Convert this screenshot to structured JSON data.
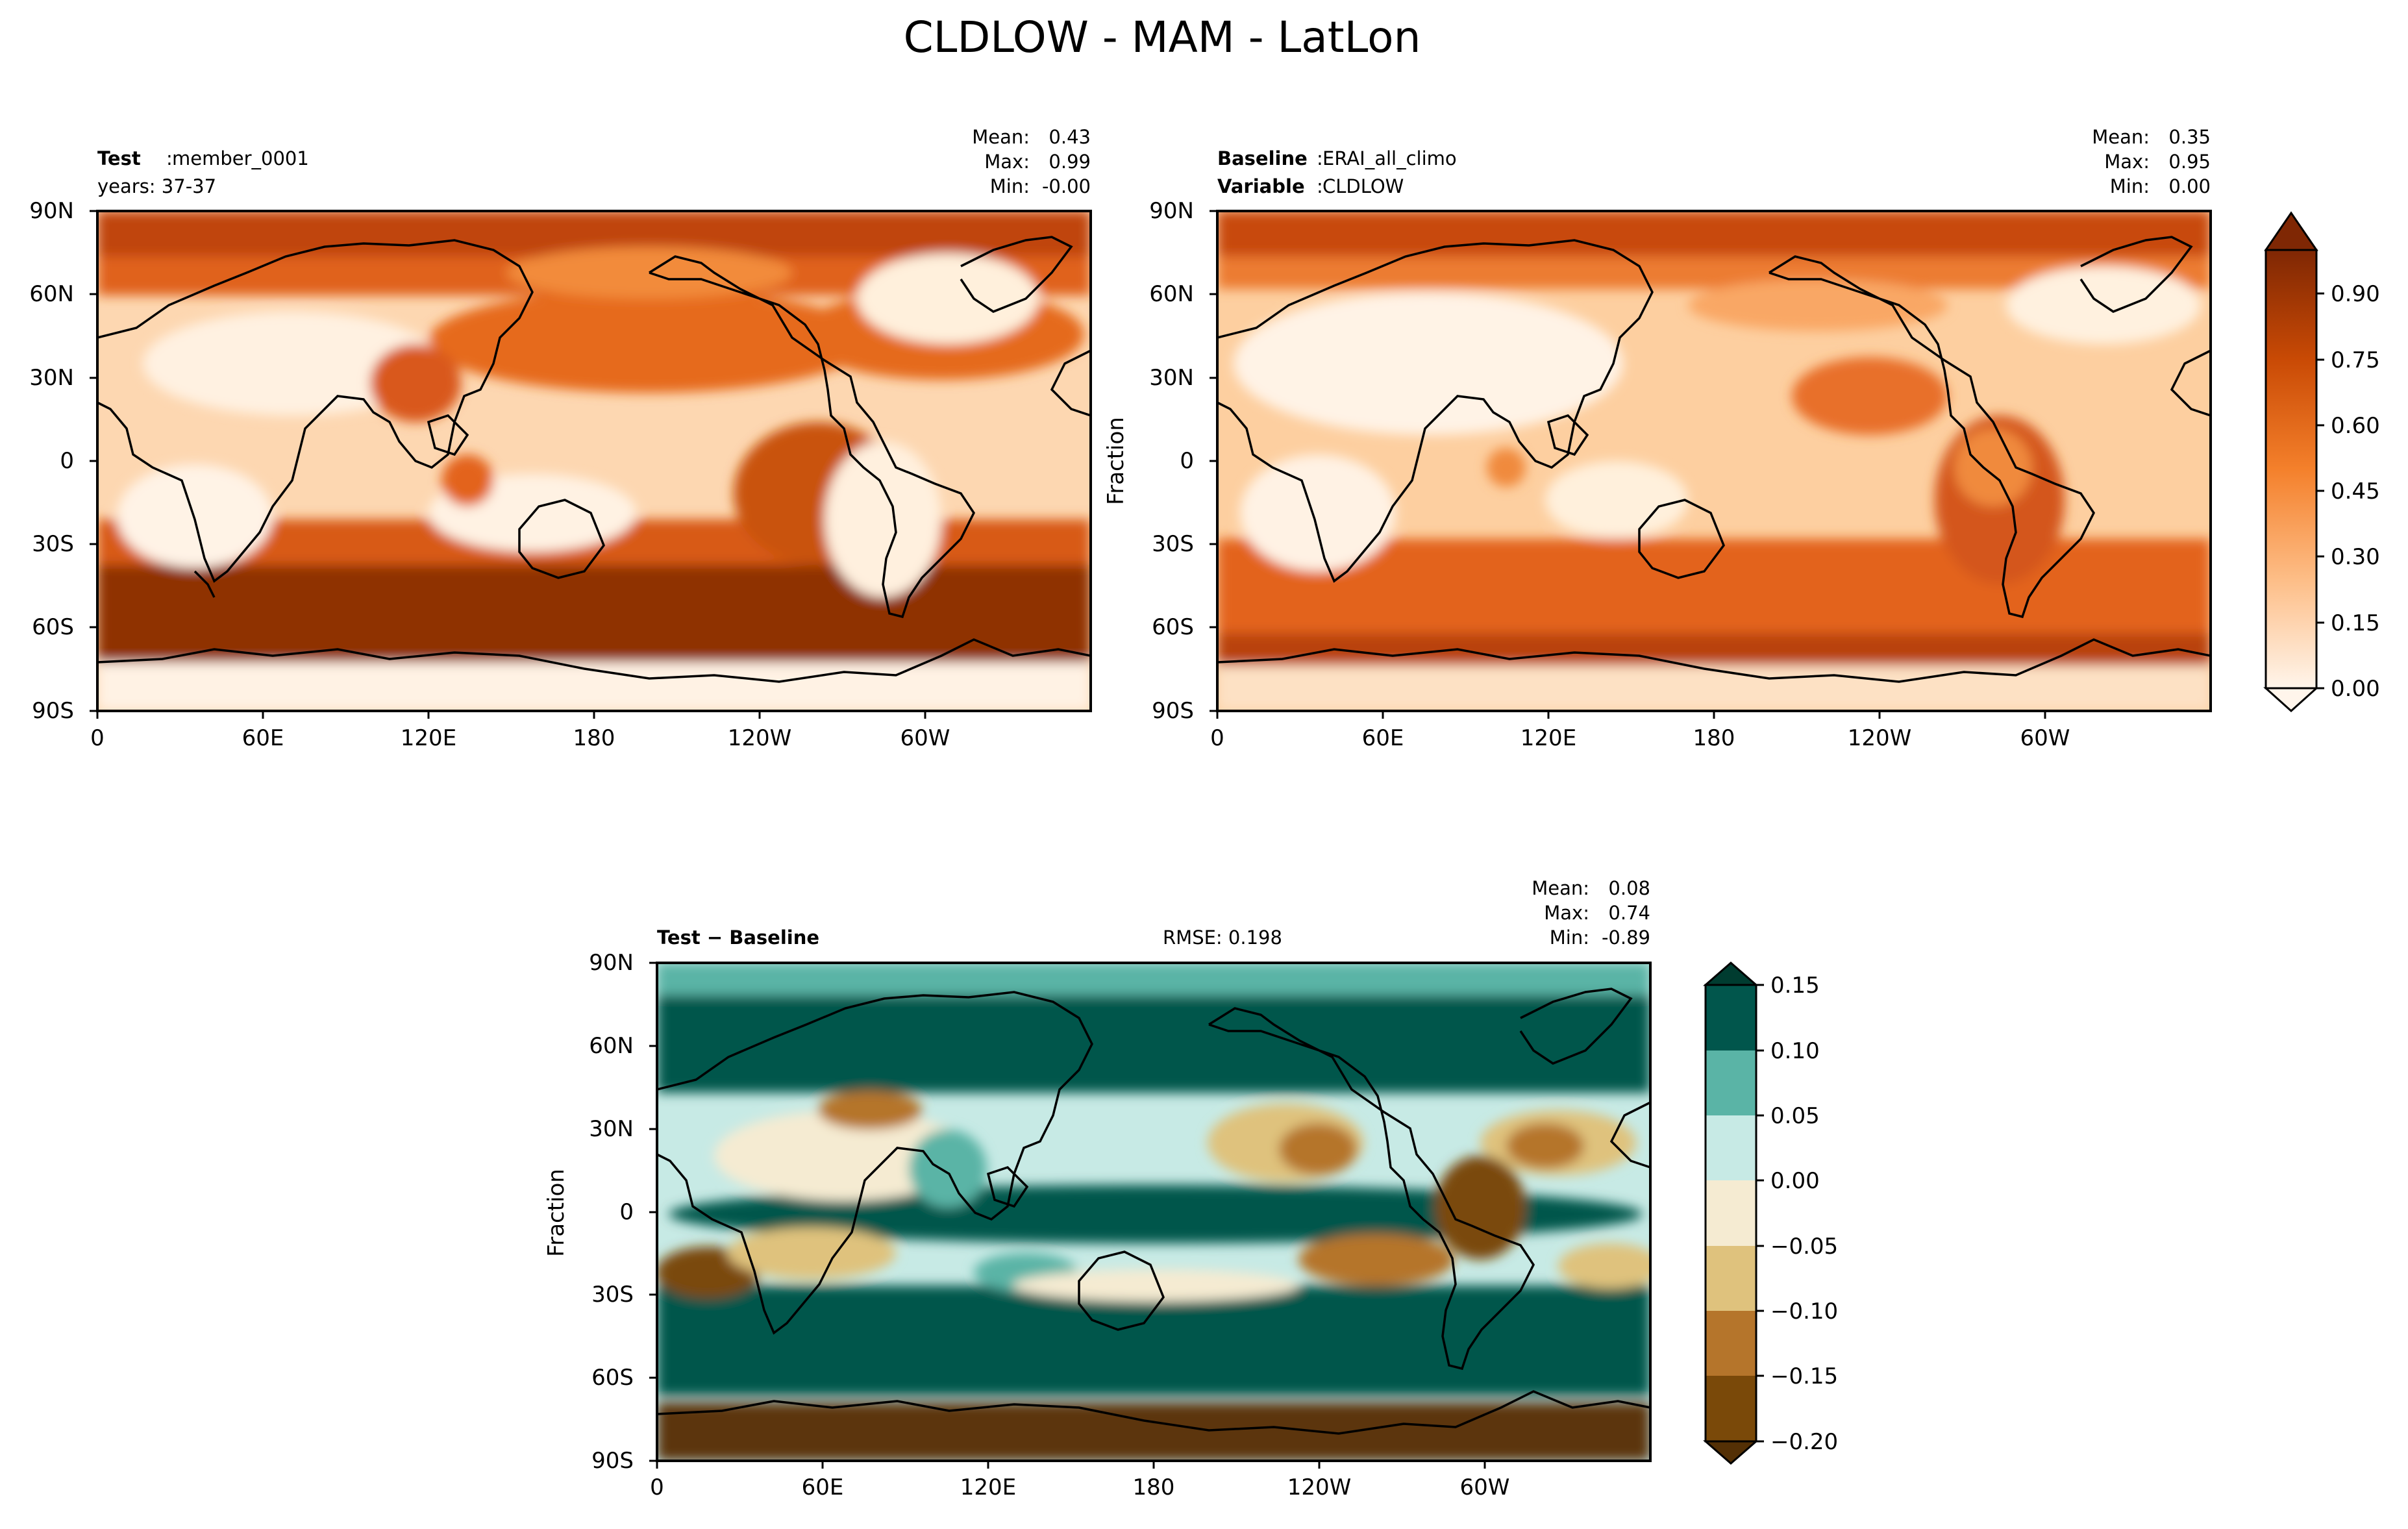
{
  "figure": {
    "title": "CLDLOW - MAM - LatLon"
  },
  "chart_data": [
    {
      "type": "heatmap",
      "panel": "test",
      "map_type": "filled-contour lat-lon map",
      "info": [
        {
          "key": "Test",
          "value": "member_0001"
        },
        {
          "key": "",
          "value": "years: 37-37"
        }
      ],
      "stats": [
        {
          "label": "Mean:",
          "value": "0.43"
        },
        {
          "label": "Max:",
          "value": "0.99"
        },
        {
          "label": "Min:",
          "value": "-0.00"
        }
      ],
      "ylabel": "",
      "xticks": [
        "0",
        "60E",
        "120E",
        "180",
        "120W",
        "60W"
      ],
      "xtick_lons": [
        0,
        60,
        120,
        180,
        240,
        300
      ],
      "xlim": [
        0,
        360
      ],
      "yticks": [
        "90N",
        "60N",
        "30N",
        "0",
        "30S",
        "60S",
        "90S"
      ],
      "ytick_lats": [
        90,
        60,
        30,
        0,
        -30,
        -60,
        -90
      ],
      "ylim": [
        -90,
        90
      ],
      "colormap": "Oranges"
    },
    {
      "type": "heatmap",
      "panel": "baseline",
      "map_type": "filled-contour lat-lon map",
      "info": [
        {
          "key": "Baseline",
          "value": "ERAI_all_climo"
        },
        {
          "key": "Variable",
          "value": "CLDLOW"
        }
      ],
      "stats": [
        {
          "label": "Mean:",
          "value": "0.35"
        },
        {
          "label": "Max:",
          "value": "0.95"
        },
        {
          "label": "Min:",
          "value": "0.00"
        }
      ],
      "ylabel": "Fraction",
      "xticks": [
        "0",
        "60E",
        "120E",
        "180",
        "120W",
        "60W"
      ],
      "xtick_lons": [
        0,
        60,
        120,
        180,
        240,
        300
      ],
      "xlim": [
        0,
        360
      ],
      "yticks": [
        "90N",
        "60N",
        "30N",
        "0",
        "30S",
        "60S",
        "90S"
      ],
      "ytick_lats": [
        90,
        60,
        30,
        0,
        -30,
        -60,
        -90
      ],
      "ylim": [
        -90,
        90
      ],
      "colormap": "Oranges",
      "colorbar": {
        "ticks": [
          "0.00",
          "0.15",
          "0.30",
          "0.45",
          "0.60",
          "0.75",
          "0.90"
        ],
        "tick_values": [
          0,
          0.15,
          0.3,
          0.45,
          0.6,
          0.75,
          0.9
        ],
        "range": [
          0,
          1.0
        ],
        "levels": 20,
        "extend": "both"
      }
    },
    {
      "type": "heatmap",
      "panel": "difference",
      "map_type": "filled-contour lat-lon map",
      "info": [
        {
          "key": "Test − Baseline",
          "value": ""
        }
      ],
      "rmse": "RMSE: 0.198",
      "stats": [
        {
          "label": "Mean:",
          "value": "0.08"
        },
        {
          "label": "Max:",
          "value": "0.74"
        },
        {
          "label": "Min:",
          "value": "-0.89"
        }
      ],
      "ylabel": "Fraction",
      "xticks": [
        "0",
        "60E",
        "120E",
        "180",
        "120W",
        "60W"
      ],
      "xtick_lons": [
        0,
        60,
        120,
        180,
        240,
        300
      ],
      "xlim": [
        0,
        360
      ],
      "yticks": [
        "90N",
        "60N",
        "30N",
        "0",
        "30S",
        "60S",
        "90S"
      ],
      "ytick_lats": [
        90,
        60,
        30,
        0,
        -30,
        -60,
        -90
      ],
      "ylim": [
        -90,
        90
      ],
      "colormap": "BrBG",
      "colorbar": {
        "ticks": [
          "0.15",
          "0.10",
          "0.05",
          "0.00",
          "−0.05",
          "−0.10",
          "−0.15",
          "−0.20"
        ],
        "tick_values": [
          0.15,
          0.1,
          0.05,
          0,
          -0.05,
          -0.1,
          -0.15,
          -0.2
        ],
        "range": [
          -0.2,
          0.15
        ],
        "colors": [
          "#01564c",
          "#5ab4a6",
          "#c7eae5",
          "#f5ebd2",
          "#dfc27d",
          "#b5752b",
          "#7a4909"
        ],
        "extend": "both"
      }
    }
  ]
}
